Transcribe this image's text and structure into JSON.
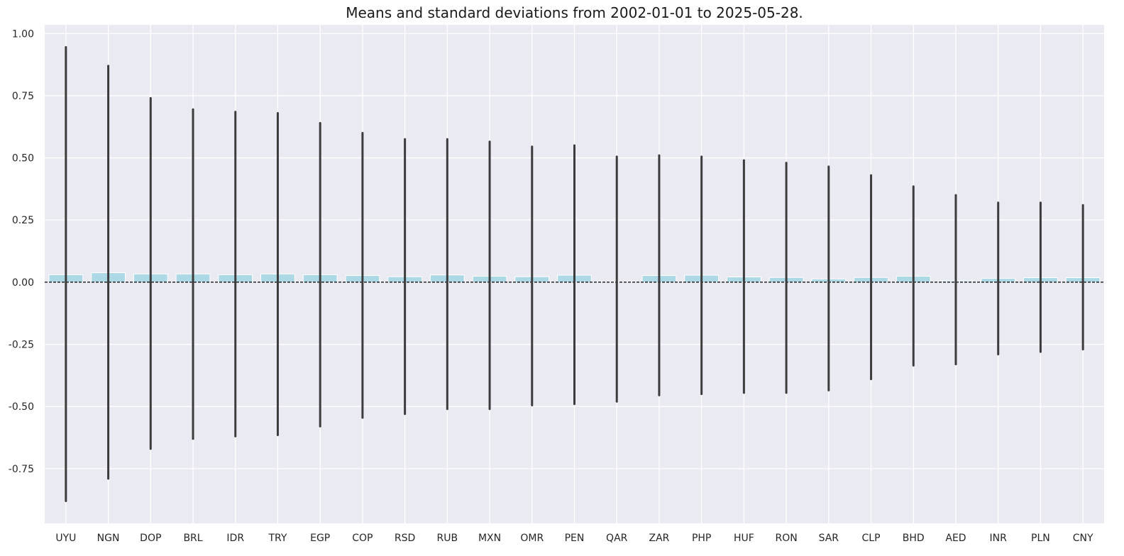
{
  "chart_data": {
    "type": "bar",
    "title": "Means and standard deviations from 2002-01-01 to 2025-05-28.",
    "xlabel": "",
    "ylabel": "",
    "categories": [
      "UYU",
      "NGN",
      "DOP",
      "BRL",
      "IDR",
      "TRY",
      "EGP",
      "COP",
      "RSD",
      "RUB",
      "MXN",
      "OMR",
      "PEN",
      "QAR",
      "ZAR",
      "PHP",
      "HUF",
      "RON",
      "SAR",
      "CLP",
      "BHD",
      "AED",
      "INR",
      "PLN",
      "CNY"
    ],
    "means": [
      0.03,
      0.038,
      0.033,
      0.033,
      0.03,
      0.033,
      0.03,
      0.027,
      0.022,
      0.029,
      0.024,
      0.022,
      0.028,
      0.002,
      0.027,
      0.028,
      0.021,
      0.019,
      0.013,
      0.019,
      0.024,
      0.005,
      0.015,
      0.018,
      0.018
    ],
    "errbar_low": [
      -0.88,
      -0.79,
      -0.67,
      -0.63,
      -0.62,
      -0.615,
      -0.58,
      -0.545,
      -0.53,
      -0.51,
      -0.51,
      -0.495,
      -0.49,
      -0.48,
      -0.455,
      -0.45,
      -0.445,
      -0.445,
      -0.435,
      -0.39,
      -0.335,
      -0.33,
      -0.29,
      -0.28,
      -0.27
    ],
    "errbar_high": [
      0.945,
      0.87,
      0.74,
      0.695,
      0.685,
      0.68,
      0.64,
      0.6,
      0.575,
      0.575,
      0.565,
      0.545,
      0.55,
      0.505,
      0.51,
      0.505,
      0.49,
      0.48,
      0.465,
      0.43,
      0.385,
      0.35,
      0.32,
      0.32,
      0.31
    ],
    "ylim": [
      -0.97,
      1.035
    ],
    "yticks": [
      -0.75,
      -0.5,
      -0.25,
      0.0,
      0.25,
      0.5,
      0.75,
      1.0
    ],
    "ytick_labels": [
      "-0.75",
      "-0.50",
      "-0.25",
      "0.00",
      "0.25",
      "0.50",
      "0.75",
      "1.00"
    ],
    "reference_line": 0,
    "grid": true,
    "legend": "none",
    "colors": {
      "background": "#eaeaf2",
      "grid": "#ffffff",
      "bar": "#add8e6",
      "errbar": "#3c3c3c",
      "zero_line": "#000000"
    }
  }
}
